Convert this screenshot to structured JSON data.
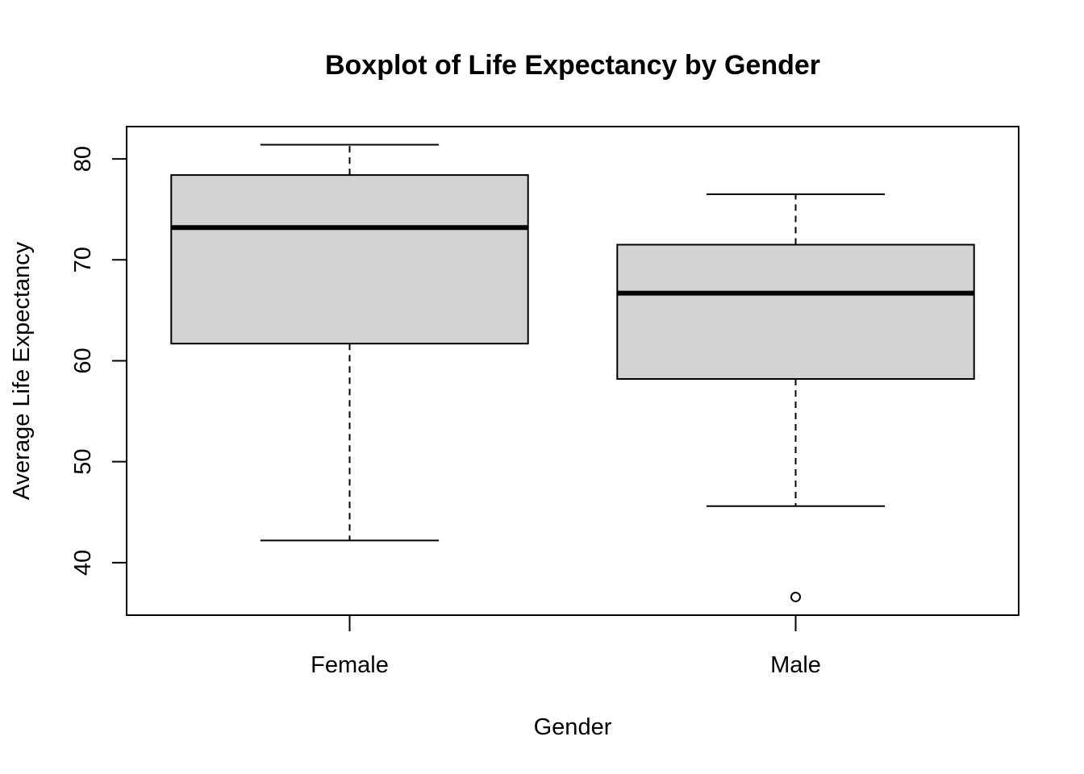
{
  "chart_data": {
    "type": "boxplot",
    "title": "Boxplot of Life Expectancy by Gender",
    "xlabel": "Gender",
    "ylabel": "Average Life Expectancy",
    "ylim": [
      34.8,
      83.2
    ],
    "yticks": [
      40,
      50,
      60,
      70,
      80
    ],
    "ytick_labels": [
      "40",
      "50",
      "60",
      "70",
      "80"
    ],
    "grid": false,
    "colors": {
      "box_fill": "#d3d3d3",
      "stroke": "#000000",
      "background": "#ffffff"
    },
    "groups": [
      {
        "label": "Female",
        "whisker_low": 42.2,
        "q1": 61.7,
        "median": 73.2,
        "q3": 78.4,
        "whisker_high": 81.4,
        "outliers": []
      },
      {
        "label": "Male",
        "whisker_low": 45.6,
        "q1": 58.2,
        "median": 66.7,
        "q3": 71.5,
        "whisker_high": 76.5,
        "outliers": [
          36.6
        ]
      }
    ]
  }
}
